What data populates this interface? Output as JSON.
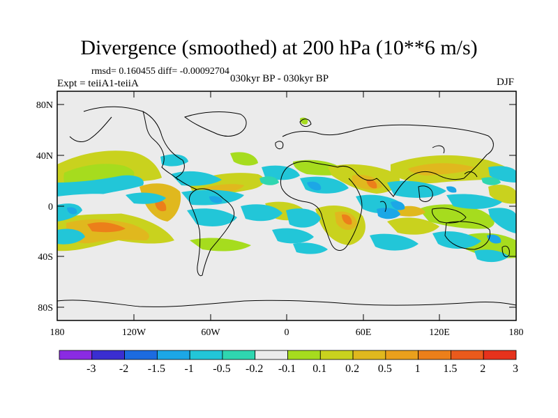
{
  "title": "Divergence (smoothed) at 200 hPa (10**6 m/s)",
  "stats_line": "rmsd= 0.160455 diff= -0.00092704",
  "experiment": "Expt = teiiA1-teiiA",
  "period": "030kyr BP - 030kyr BP",
  "season": "DJF",
  "lat_ticks": [
    "80N",
    "40N",
    "0",
    "40S",
    "80S"
  ],
  "lon_ticks": [
    "180",
    "120W",
    "60W",
    "0",
    "60E",
    "120E",
    "180"
  ],
  "colorbar": {
    "colors": [
      "#8a2be2",
      "#3a2ed1",
      "#1c6be0",
      "#1ca7e6",
      "#22c6d8",
      "#2fd6b0",
      "#ebebeb",
      "#a6dc1e",
      "#c9d21e",
      "#e0b81e",
      "#eaa01c",
      "#ec7f1a",
      "#ea5a1c",
      "#e6321c"
    ],
    "labels": [
      "-3",
      "-2",
      "-1.5",
      "-1",
      "-0.5",
      "-0.2",
      "-0.1",
      "0.1",
      "0.2",
      "0.5",
      "1",
      "1.5",
      "2",
      "3"
    ]
  }
}
